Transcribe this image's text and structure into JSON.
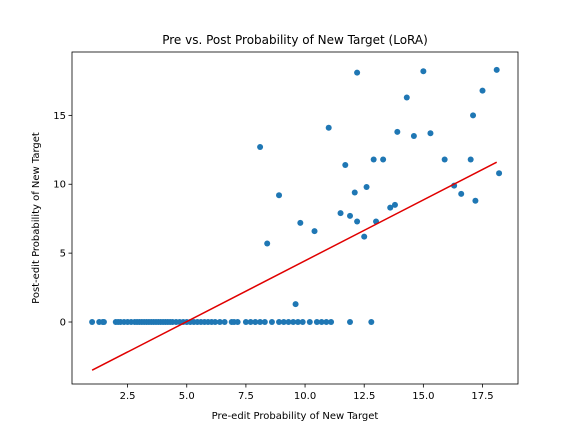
{
  "chart_data": {
    "type": "scatter",
    "title": "Pre vs. Post Probability of New Target (LoRA)",
    "xlabel": "Pre-edit Probability of New Target",
    "ylabel": "Post-edit Probability of New Target",
    "xlim": [
      0.15,
      19.0
    ],
    "ylim": [
      -4.5,
      19.6
    ],
    "xticks": [
      2.5,
      5.0,
      7.5,
      10.0,
      12.5,
      15.0,
      17.5
    ],
    "xtick_labels": [
      "2.5",
      "5.0",
      "7.5",
      "10.0",
      "12.5",
      "15.0",
      "17.5"
    ],
    "yticks": [
      0,
      5,
      10,
      15
    ],
    "ytick_labels": [
      "0",
      "5",
      "10",
      "15"
    ],
    "grid": false,
    "colors": {
      "points": "#1f77b4",
      "fit_line": "#e00000",
      "axes": "#000000"
    },
    "series": [
      {
        "kind": "scatter",
        "points": [
          [
            1.0,
            0
          ],
          [
            1.5,
            0
          ],
          [
            1.3,
            0
          ],
          [
            1.45,
            0
          ],
          [
            2.0,
            0
          ],
          [
            2.1,
            0
          ],
          [
            2.2,
            0
          ],
          [
            2.35,
            0
          ],
          [
            2.5,
            0
          ],
          [
            2.65,
            0
          ],
          [
            2.8,
            0
          ],
          [
            2.9,
            0
          ],
          [
            3.0,
            0
          ],
          [
            3.1,
            0
          ],
          [
            3.2,
            0
          ],
          [
            3.3,
            0
          ],
          [
            3.4,
            0
          ],
          [
            3.5,
            0
          ],
          [
            3.6,
            0
          ],
          [
            3.7,
            0
          ],
          [
            3.8,
            0
          ],
          [
            3.9,
            0
          ],
          [
            4.0,
            0
          ],
          [
            4.1,
            0
          ],
          [
            4.2,
            0
          ],
          [
            4.3,
            0
          ],
          [
            4.4,
            0
          ],
          [
            4.55,
            0
          ],
          [
            4.7,
            0
          ],
          [
            4.85,
            0
          ],
          [
            5.0,
            0
          ],
          [
            5.15,
            0
          ],
          [
            5.3,
            0
          ],
          [
            5.45,
            0
          ],
          [
            5.6,
            0
          ],
          [
            5.75,
            0
          ],
          [
            5.9,
            0
          ],
          [
            6.05,
            0
          ],
          [
            6.2,
            0
          ],
          [
            6.4,
            0
          ],
          [
            6.6,
            0
          ],
          [
            6.9,
            0
          ],
          [
            7.0,
            0
          ],
          [
            7.15,
            0
          ],
          [
            7.5,
            0
          ],
          [
            7.7,
            0
          ],
          [
            7.9,
            0
          ],
          [
            8.1,
            0
          ],
          [
            8.3,
            0
          ],
          [
            8.6,
            0
          ],
          [
            8.9,
            0
          ],
          [
            9.1,
            0
          ],
          [
            9.3,
            0
          ],
          [
            9.5,
            0
          ],
          [
            9.7,
            0
          ],
          [
            9.9,
            0
          ],
          [
            10.2,
            0
          ],
          [
            10.5,
            0
          ],
          [
            10.7,
            0
          ],
          [
            10.9,
            0
          ],
          [
            11.1,
            0
          ],
          [
            11.9,
            0
          ],
          [
            12.8,
            0
          ],
          [
            9.6,
            1.3
          ],
          [
            8.4,
            5.7
          ],
          [
            8.1,
            12.7
          ],
          [
            8.9,
            9.2
          ],
          [
            9.8,
            7.2
          ],
          [
            10.4,
            6.6
          ],
          [
            11.0,
            14.1
          ],
          [
            11.5,
            7.9
          ],
          [
            11.7,
            11.4
          ],
          [
            11.9,
            7.7
          ],
          [
            12.1,
            9.4
          ],
          [
            12.2,
            7.3
          ],
          [
            12.5,
            6.2
          ],
          [
            12.6,
            9.8
          ],
          [
            12.2,
            18.1
          ],
          [
            12.9,
            11.8
          ],
          [
            13.0,
            7.3
          ],
          [
            13.3,
            11.8
          ],
          [
            13.6,
            8.3
          ],
          [
            13.8,
            8.5
          ],
          [
            13.9,
            13.8
          ],
          [
            14.3,
            16.3
          ],
          [
            14.6,
            13.5
          ],
          [
            15.0,
            18.2
          ],
          [
            15.3,
            13.7
          ],
          [
            15.9,
            11.8
          ],
          [
            16.3,
            9.9
          ],
          [
            16.6,
            9.3
          ],
          [
            17.0,
            11.8
          ],
          [
            17.1,
            15.0
          ],
          [
            17.2,
            8.8
          ],
          [
            17.5,
            16.8
          ],
          [
            18.1,
            18.3
          ],
          [
            18.2,
            10.8
          ]
        ]
      },
      {
        "kind": "line",
        "points": [
          [
            1.0,
            -3.5
          ],
          [
            18.1,
            11.6
          ]
        ]
      }
    ]
  }
}
